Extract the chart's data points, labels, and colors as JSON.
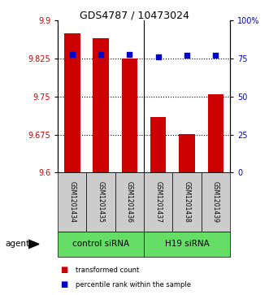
{
  "title": "GDS4787 / 10473024",
  "samples": [
    "GSM1201434",
    "GSM1201435",
    "GSM1201436",
    "GSM1201437",
    "GSM1201438",
    "GSM1201439"
  ],
  "bar_values": [
    9.875,
    9.865,
    9.825,
    9.71,
    9.676,
    9.755
  ],
  "percentile_values": [
    78,
    78,
    78,
    76,
    77,
    77
  ],
  "ylim_left": [
    9.6,
    9.9
  ],
  "ylim_right": [
    0,
    100
  ],
  "yticks_left": [
    9.6,
    9.675,
    9.75,
    9.825,
    9.9
  ],
  "yticks_right": [
    0,
    25,
    50,
    75,
    100
  ],
  "ytick_labels_left": [
    "9.6",
    "9.675",
    "9.75",
    "9.825",
    "9.9"
  ],
  "ytick_labels_right": [
    "0",
    "25",
    "50",
    "75",
    "100%"
  ],
  "bar_color": "#cc0000",
  "dot_color": "#0000cc",
  "agent_label": "agent",
  "legend_bar_label": "transformed count",
  "legend_dot_label": "percentile rank within the sample",
  "bar_width": 0.55,
  "background_color": "#ffffff",
  "plot_bg_color": "#ffffff",
  "label_area_bg": "#cccccc",
  "group_area_bg": "#66dd66",
  "group_info": [
    {
      "label": "control siRNA",
      "start": 0,
      "end": 2
    },
    {
      "label": "H19 siRNA",
      "start": 3,
      "end": 5
    }
  ]
}
